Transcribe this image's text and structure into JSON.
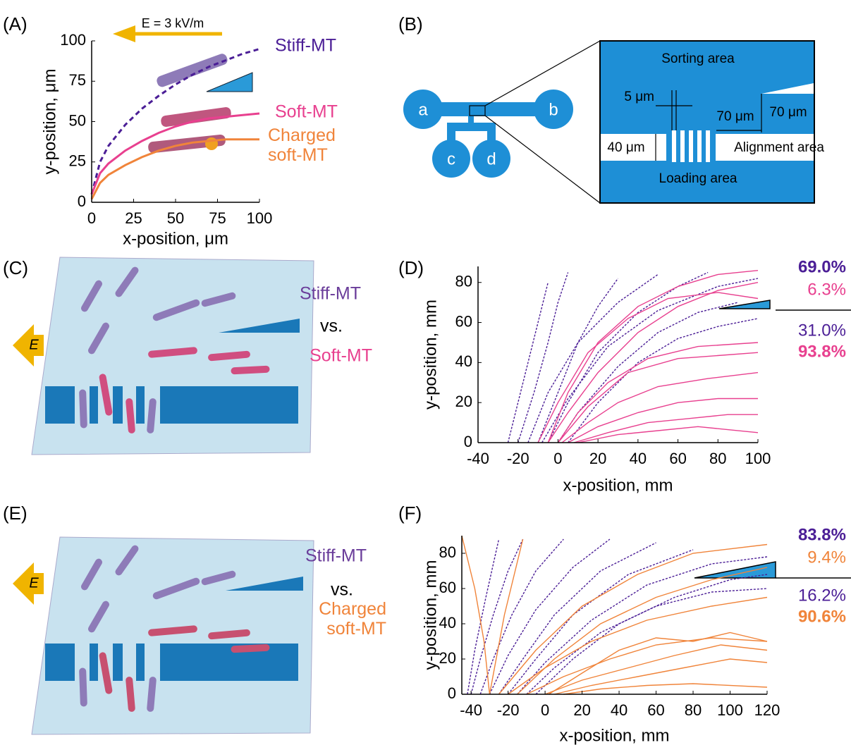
{
  "panel_labels": [
    "(A)",
    "(B)",
    "(C)",
    "(D)",
    "(E)",
    "(F)"
  ],
  "chart_data": [
    {
      "type": "line",
      "annotation": "E = 3 kV/m",
      "x_label": "x-position, μm",
      "y_label": "y-position, μm",
      "xlim": [
        0,
        100
      ],
      "ylim": [
        0,
        100
      ],
      "xticks": [
        0,
        25,
        50,
        75,
        100
      ],
      "yticks": [
        0,
        25,
        50,
        75,
        100
      ],
      "x": [
        0,
        5,
        10,
        20,
        30,
        40,
        50,
        60,
        70,
        80,
        90,
        100
      ],
      "series": [
        {
          "name": "Stiff-MT",
          "color": "#4b1e96",
          "dashed": true,
          "values": [
            5,
            25,
            35,
            48,
            58,
            66,
            73,
            79,
            84,
            88,
            92,
            95
          ]
        },
        {
          "name": "Soft-MT",
          "color": "#e8408f",
          "dashed": false,
          "values": [
            5,
            18,
            24,
            32,
            38,
            43,
            47,
            50,
            52,
            53,
            54,
            55
          ]
        },
        {
          "name": "Charged soft-MT",
          "color": "#f0843a",
          "dashed": false,
          "values": [
            2,
            12,
            17,
            23,
            28,
            32,
            35,
            37,
            38,
            39,
            39,
            39
          ]
        }
      ]
    },
    {
      "type": "line",
      "x_label": "x-position, mm",
      "y_label": "y-position, mm",
      "xlim": [
        -40,
        100
      ],
      "ylim": [
        0,
        88
      ],
      "xticks": [
        -40,
        -20,
        0,
        20,
        40,
        60,
        80,
        100
      ],
      "yticks": [
        0,
        20,
        40,
        60,
        80
      ],
      "annotations": [
        "69.0%",
        "6.3%",
        "31.0%",
        "93.8%"
      ],
      "series": [
        {
          "color": "#4b1e96",
          "dashed": true,
          "x": [
            -25,
            -20,
            -15,
            -10,
            -5
          ],
          "values": [
            0,
            20,
            40,
            60,
            80
          ]
        },
        {
          "color": "#4b1e96",
          "dashed": true,
          "x": [
            -20,
            -12,
            -5,
            0,
            5
          ],
          "values": [
            0,
            25,
            50,
            70,
            85
          ]
        },
        {
          "color": "#4b1e96",
          "dashed": true,
          "x": [
            -10,
            0,
            10,
            20,
            30
          ],
          "values": [
            0,
            25,
            50,
            68,
            82
          ]
        },
        {
          "color": "#4b1e96",
          "dashed": true,
          "x": [
            -5,
            5,
            20,
            40,
            60,
            75
          ],
          "values": [
            0,
            20,
            45,
            65,
            78,
            85
          ]
        },
        {
          "color": "#4b1e96",
          "dashed": true,
          "x": [
            0,
            10,
            30,
            50,
            70,
            90
          ],
          "values": [
            0,
            15,
            38,
            55,
            65,
            70
          ]
        },
        {
          "color": "#4b1e96",
          "dashed": true,
          "x": [
            -15,
            -5,
            10,
            30,
            50
          ],
          "values": [
            0,
            25,
            50,
            70,
            84
          ]
        },
        {
          "color": "#4b1e96",
          "dashed": true,
          "x": [
            5,
            20,
            40,
            60,
            80,
            100
          ],
          "values": [
            0,
            20,
            40,
            52,
            58,
            62
          ]
        },
        {
          "color": "#4b1e96",
          "dashed": true,
          "x": [
            -8,
            5,
            25,
            50,
            80,
            100
          ],
          "values": [
            0,
            22,
            48,
            66,
            78,
            82
          ]
        },
        {
          "color": "#e8408f",
          "dashed": false,
          "x": [
            -5,
            5,
            20,
            40,
            60,
            80,
            100
          ],
          "values": [
            0,
            15,
            35,
            55,
            68,
            76,
            80
          ]
        },
        {
          "color": "#e8408f",
          "dashed": false,
          "x": [
            0,
            10,
            25,
            45,
            70,
            100
          ],
          "values": [
            0,
            15,
            30,
            42,
            48,
            50
          ]
        },
        {
          "color": "#e8408f",
          "dashed": false,
          "x": [
            2,
            15,
            30,
            50,
            75,
            100
          ],
          "values": [
            0,
            10,
            20,
            28,
            32,
            35
          ]
        },
        {
          "color": "#e8408f",
          "dashed": false,
          "x": [
            5,
            20,
            40,
            60,
            80,
            100
          ],
          "values": [
            0,
            8,
            15,
            20,
            22,
            22
          ]
        },
        {
          "color": "#e8408f",
          "dashed": false,
          "x": [
            8,
            25,
            45,
            65,
            85,
            100
          ],
          "values": [
            0,
            5,
            10,
            12,
            14,
            14
          ]
        },
        {
          "color": "#e8408f",
          "dashed": false,
          "x": [
            -5,
            5,
            20,
            40,
            60,
            80,
            100
          ],
          "values": [
            0,
            25,
            50,
            68,
            78,
            84,
            86
          ]
        },
        {
          "color": "#e8408f",
          "dashed": false,
          "x": [
            -10,
            0,
            15,
            35,
            55,
            80,
            100
          ],
          "values": [
            0,
            20,
            45,
            62,
            72,
            75,
            72
          ]
        },
        {
          "color": "#e8408f",
          "dashed": false,
          "x": [
            10,
            30,
            50,
            70,
            100
          ],
          "values": [
            0,
            4,
            6,
            8,
            5
          ]
        },
        {
          "color": "#e8408f",
          "dashed": false,
          "x": [
            0,
            15,
            35,
            60,
            100
          ],
          "values": [
            0,
            18,
            35,
            42,
            45
          ]
        }
      ]
    },
    {
      "type": "line",
      "x_label": "x-position, mm",
      "y_label": "y-position, mm",
      "xlim": [
        -45,
        120
      ],
      "ylim": [
        0,
        90
      ],
      "xticks": [
        -40,
        -20,
        0,
        20,
        40,
        60,
        80,
        100,
        120
      ],
      "yticks": [
        0,
        20,
        40,
        60,
        80
      ],
      "annotations": [
        "83.8%",
        "9.4%",
        "16.2%",
        "90.6%"
      ],
      "series": [
        {
          "color": "#4b1e96",
          "dashed": true,
          "x": [
            -40,
            -35,
            -28,
            -20,
            -12
          ],
          "values": [
            0,
            20,
            45,
            70,
            88
          ]
        },
        {
          "color": "#4b1e96",
          "dashed": true,
          "x": [
            -35,
            -28,
            -18,
            -5,
            10
          ],
          "values": [
            0,
            20,
            45,
            70,
            88
          ]
        },
        {
          "color": "#4b1e96",
          "dashed": true,
          "x": [
            -30,
            -20,
            -5,
            15,
            35
          ],
          "values": [
            0,
            22,
            48,
            72,
            88
          ]
        },
        {
          "color": "#4b1e96",
          "dashed": true,
          "x": [
            -25,
            -12,
            5,
            30,
            60
          ],
          "values": [
            0,
            20,
            45,
            70,
            86
          ]
        },
        {
          "color": "#4b1e96",
          "dashed": true,
          "x": [
            -20,
            -5,
            15,
            45,
            80
          ],
          "values": [
            0,
            20,
            45,
            68,
            82
          ]
        },
        {
          "color": "#4b1e96",
          "dashed": true,
          "x": [
            -15,
            0,
            25,
            55,
            90,
            120
          ],
          "values": [
            0,
            18,
            42,
            62,
            74,
            78
          ]
        },
        {
          "color": "#4b1e96",
          "dashed": true,
          "x": [
            -10,
            5,
            30,
            60,
            90,
            120
          ],
          "values": [
            0,
            15,
            35,
            50,
            58,
            60
          ]
        },
        {
          "color": "#4b1e96",
          "dashed": true,
          "x": [
            -42,
            -38,
            -32,
            -25
          ],
          "values": [
            0,
            25,
            55,
            88
          ]
        },
        {
          "color": "#4b1e96",
          "dashed": true,
          "x": [
            -5,
            15,
            40,
            70,
            100,
            120
          ],
          "values": [
            0,
            20,
            40,
            55,
            65,
            68
          ]
        },
        {
          "color": "#f0843a",
          "dashed": false,
          "x": [
            -45,
            -38,
            -33,
            -30
          ],
          "values": [
            90,
            60,
            30,
            0
          ]
        },
        {
          "color": "#f0843a",
          "dashed": false,
          "x": [
            -30,
            -22,
            -12
          ],
          "values": [
            0,
            45,
            88
          ]
        },
        {
          "color": "#f0843a",
          "dashed": false,
          "x": [
            -20,
            0,
            25,
            55,
            90,
            120
          ],
          "values": [
            0,
            15,
            30,
            42,
            50,
            55
          ]
        },
        {
          "color": "#f0843a",
          "dashed": false,
          "x": [
            -10,
            10,
            35,
            60,
            90,
            120
          ],
          "values": [
            0,
            10,
            20,
            28,
            32,
            30
          ]
        },
        {
          "color": "#f0843a",
          "dashed": false,
          "x": [
            0,
            20,
            45,
            70,
            95,
            120
          ],
          "values": [
            0,
            8,
            15,
            22,
            28,
            25
          ]
        },
        {
          "color": "#f0843a",
          "dashed": false,
          "x": [
            5,
            25,
            50,
            75,
            100,
            120
          ],
          "values": [
            0,
            5,
            10,
            15,
            20,
            18
          ]
        },
        {
          "color": "#f0843a",
          "dashed": false,
          "x": [
            -15,
            5,
            30,
            60,
            90,
            120
          ],
          "values": [
            0,
            20,
            40,
            55,
            65,
            72
          ]
        },
        {
          "color": "#f0843a",
          "dashed": false,
          "x": [
            10,
            30,
            55,
            80,
            120
          ],
          "values": [
            0,
            3,
            5,
            6,
            4
          ]
        },
        {
          "color": "#f0843a",
          "dashed": false,
          "x": [
            -25,
            -5,
            20,
            50,
            80,
            120
          ],
          "values": [
            0,
            25,
            50,
            68,
            80,
            85
          ]
        },
        {
          "color": "#f0843a",
          "dashed": false,
          "x": [
            2,
            20,
            40,
            60,
            80,
            100,
            120
          ],
          "values": [
            0,
            12,
            25,
            32,
            30,
            35,
            30
          ]
        }
      ]
    }
  ],
  "panel_b": {
    "ports": [
      "a",
      "b",
      "c",
      "d"
    ],
    "areas": [
      "Sorting area",
      "Loading area",
      "Alignment area"
    ],
    "dimensions": [
      "5 μm",
      "70 μm",
      "70 μm",
      "40 μm"
    ]
  },
  "panel_c": {
    "field": "E",
    "labels": [
      "Stiff-MT",
      "vs.",
      "Soft-MT"
    ]
  },
  "panel_e": {
    "field": "E",
    "labels": [
      "Stiff-MT",
      "vs.",
      "Charged soft-MT"
    ]
  }
}
